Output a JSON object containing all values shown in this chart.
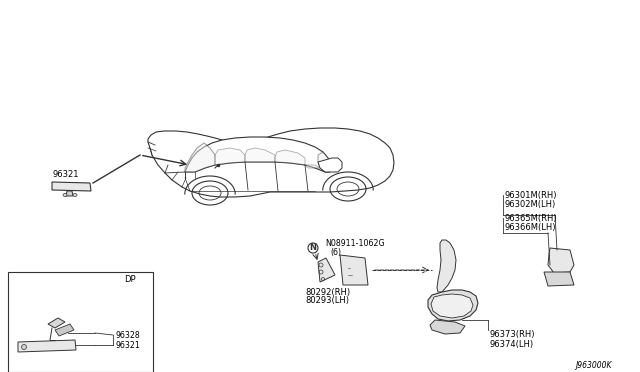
{
  "bg_color": "#ffffff",
  "line_color": "#333333",
  "text_color": "#000000",
  "fig_width": 6.4,
  "fig_height": 3.72,
  "dpi": 100,
  "diagram_code": "J963000K",
  "parts": {
    "inside_mirror": "96321",
    "mirror_cover": "96328",
    "nut": "N08911-1062G",
    "nut_qty": "(6)",
    "door_mirror_rh": "80292(RH)",
    "door_mirror_lh": "80293(LH)",
    "outer_mirror_rh": "96301M(RH)",
    "outer_mirror_lh": "96302M(LH)",
    "mirror_cover_rh": "96365M(RH)",
    "mirror_cover_lh": "96366M(LH)",
    "mirror_body_rh": "96373(RH)",
    "mirror_body_lh": "96374(LH)"
  },
  "inset_label": "DP"
}
